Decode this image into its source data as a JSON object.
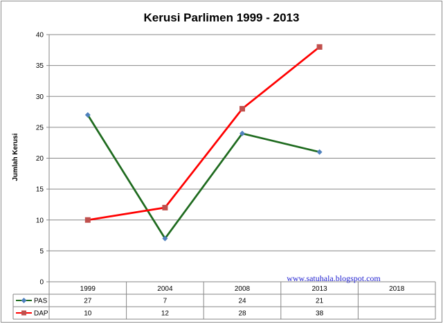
{
  "chart_data": {
    "type": "line",
    "title": "Kerusi Parlimen 1999  - 2013",
    "ylabel": "Jumlah Kerusi",
    "xlabel": "",
    "categories": [
      "1999",
      "2004",
      "2008",
      "2013",
      "2018"
    ],
    "ylim": [
      0,
      40
    ],
    "yticks": [
      "0",
      "5",
      "10",
      "15",
      "20",
      "25",
      "30",
      "35",
      "40"
    ],
    "grid": true,
    "legend": "data-table-bottom",
    "series": [
      {
        "name": "PAS",
        "values": [
          27,
          7,
          24,
          21,
          null
        ],
        "color": "#1f6b1f",
        "marker": "diamond",
        "marker_color": "#4f81bd"
      },
      {
        "name": "DAP",
        "values": [
          10,
          12,
          28,
          38,
          null
        ],
        "color": "#ff0000",
        "marker": "square",
        "marker_color": "#c0504d"
      }
    ],
    "table": {
      "rows": [
        {
          "label": "PAS",
          "cells": [
            "27",
            "7",
            "24",
            "21",
            ""
          ]
        },
        {
          "label": "DAP",
          "cells": [
            "10",
            "12",
            "28",
            "38",
            ""
          ]
        }
      ]
    },
    "annotation": "www.satuhala.blogspot.com"
  }
}
